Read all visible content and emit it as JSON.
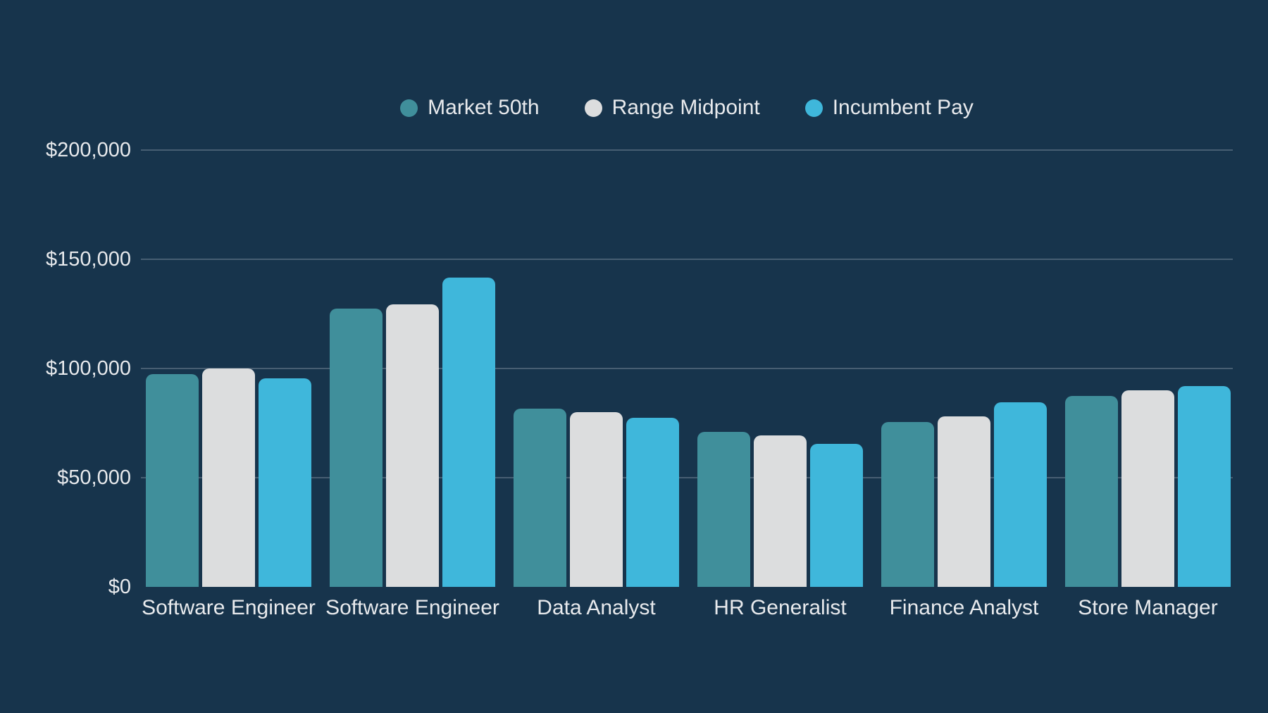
{
  "colors": {
    "background": "#17344C",
    "text": "#E8EAED",
    "gridline": "rgba(224,232,240,0.24)"
  },
  "chart_data": {
    "type": "bar",
    "title": "",
    "xlabel": "",
    "ylabel": "",
    "grid": true,
    "legend_position": "top",
    "categories": [
      "Software Engineer",
      "Software Engineer",
      "Data Analyst",
      "HR Generalist",
      "Finance Analyst",
      "Store Manager"
    ],
    "series": [
      {
        "name": "Market 50th",
        "color": "#408F9B",
        "values": [
          97500,
          127500,
          81500,
          71000,
          75500,
          87500
        ]
      },
      {
        "name": "Range Midpoint",
        "color": "#DCDDDE",
        "values": [
          100000,
          129500,
          80000,
          69500,
          78000,
          90000
        ]
      },
      {
        "name": "Incumbent Pay",
        "color": "#3FB7DB",
        "values": [
          95500,
          141500,
          77500,
          65500,
          84500,
          92000
        ]
      }
    ],
    "y_axis": {
      "min": 0,
      "max": 200000,
      "ticks": [
        {
          "value": 0,
          "label": "$0"
        },
        {
          "value": 50000,
          "label": "$50,000"
        },
        {
          "value": 100000,
          "label": "$100,000"
        },
        {
          "value": 150000,
          "label": "$150,000"
        },
        {
          "value": 200000,
          "label": "$200,000"
        }
      ]
    }
  }
}
